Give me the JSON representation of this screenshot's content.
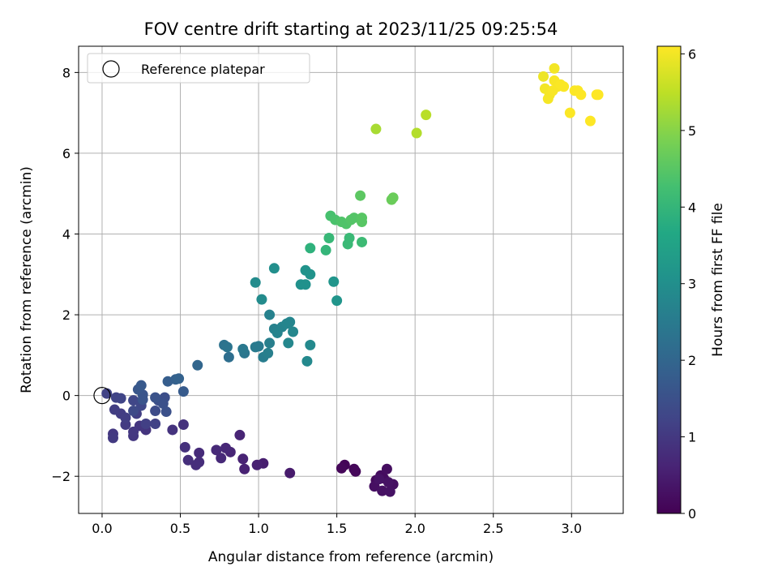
{
  "chart_data": {
    "type": "scatter",
    "title": "FOV centre drift starting at 2023/11/25 09:25:54",
    "xlabel": "Angular distance from reference (arcmin)",
    "ylabel": "Rotation from reference (arcmin)",
    "colorbar_label": "Hours from first FF file",
    "xlim": [
      -0.15,
      3.33
    ],
    "ylim": [
      -2.92,
      8.65
    ],
    "clim": [
      0,
      6.1
    ],
    "colormap": "viridis",
    "grid": true,
    "legend_position": "top-left",
    "x_ticks": [
      0.0,
      0.5,
      1.0,
      1.5,
      2.0,
      2.5,
      3.0
    ],
    "x_tick_labels": [
      "0.0",
      "0.5",
      "1.0",
      "1.5",
      "2.0",
      "2.5",
      "3.0"
    ],
    "y_ticks": [
      -2,
      0,
      2,
      4,
      6,
      8
    ],
    "y_tick_labels": [
      "−2",
      "0",
      "2",
      "4",
      "6",
      "8"
    ],
    "colorbar_ticks": [
      0,
      1,
      2,
      3,
      4,
      5,
      6
    ],
    "colorbar_tick_labels": [
      "0",
      "1",
      "2",
      "3",
      "4",
      "5",
      "6"
    ],
    "reference": {
      "name": "Reference platepar",
      "x": 0.0,
      "y": 0.0
    },
    "points": [
      {
        "x": 1.55,
        "y": -1.72,
        "t": 0.05
      },
      {
        "x": 1.53,
        "y": -1.8,
        "t": 0.1
      },
      {
        "x": 1.61,
        "y": -1.82,
        "t": 0.1
      },
      {
        "x": 1.62,
        "y": -1.88,
        "t": 0.12
      },
      {
        "x": 1.75,
        "y": -2.1,
        "t": 0.15
      },
      {
        "x": 1.78,
        "y": -1.98,
        "t": 0.2
      },
      {
        "x": 1.8,
        "y": -2.05,
        "t": 0.2
      },
      {
        "x": 1.82,
        "y": -1.82,
        "t": 0.22
      },
      {
        "x": 1.86,
        "y": -2.2,
        "t": 0.25
      },
      {
        "x": 1.74,
        "y": -2.25,
        "t": 0.25
      },
      {
        "x": 1.79,
        "y": -2.36,
        "t": 0.28
      },
      {
        "x": 1.84,
        "y": -2.38,
        "t": 0.3
      },
      {
        "x": 1.83,
        "y": -2.15,
        "t": 0.3
      },
      {
        "x": 1.77,
        "y": -2.07,
        "t": 0.32
      },
      {
        "x": 1.2,
        "y": -1.92,
        "t": 0.45
      },
      {
        "x": 1.03,
        "y": -1.68,
        "t": 0.5
      },
      {
        "x": 0.99,
        "y": -1.72,
        "t": 0.55
      },
      {
        "x": 0.91,
        "y": -1.82,
        "t": 0.58
      },
      {
        "x": 0.9,
        "y": -1.57,
        "t": 0.6
      },
      {
        "x": 0.88,
        "y": -0.98,
        "t": 0.62
      },
      {
        "x": 0.82,
        "y": -1.4,
        "t": 0.65
      },
      {
        "x": 0.79,
        "y": -1.3,
        "t": 0.68
      },
      {
        "x": 0.76,
        "y": -1.55,
        "t": 0.7
      },
      {
        "x": 0.73,
        "y": -1.35,
        "t": 0.72
      },
      {
        "x": 0.62,
        "y": -1.42,
        "t": 0.75
      },
      {
        "x": 0.62,
        "y": -1.65,
        "t": 0.78
      },
      {
        "x": 0.6,
        "y": -1.72,
        "t": 0.8
      },
      {
        "x": 0.55,
        "y": -1.6,
        "t": 0.82
      },
      {
        "x": 0.53,
        "y": -1.28,
        "t": 0.85
      },
      {
        "x": 0.52,
        "y": -0.72,
        "t": 0.88
      },
      {
        "x": 0.45,
        "y": -0.85,
        "t": 0.9
      },
      {
        "x": 0.28,
        "y": -0.85,
        "t": 0.92
      },
      {
        "x": 0.24,
        "y": -0.75,
        "t": 0.95
      },
      {
        "x": 0.2,
        "y": -1.0,
        "t": 0.98
      },
      {
        "x": 0.2,
        "y": -0.9,
        "t": 1.0
      },
      {
        "x": 0.07,
        "y": -0.95,
        "t": 1.0
      },
      {
        "x": 0.07,
        "y": -1.05,
        "t": 1.02
      },
      {
        "x": 0.15,
        "y": -0.72,
        "t": 1.05
      },
      {
        "x": 0.12,
        "y": -0.45,
        "t": 1.08
      },
      {
        "x": 0.08,
        "y": -0.35,
        "t": 1.1
      },
      {
        "x": 0.15,
        "y": -0.55,
        "t": 1.1
      },
      {
        "x": 0.22,
        "y": -0.45,
        "t": 1.12
      },
      {
        "x": 0.28,
        "y": -0.7,
        "t": 1.15
      },
      {
        "x": 0.34,
        "y": -0.7,
        "t": 1.18
      },
      {
        "x": 0.03,
        "y": 0.05,
        "t": 1.2
      },
      {
        "x": 0.09,
        "y": -0.05,
        "t": 1.22
      },
      {
        "x": 0.12,
        "y": -0.07,
        "t": 1.25
      },
      {
        "x": 0.2,
        "y": -0.12,
        "t": 1.28
      },
      {
        "x": 0.25,
        "y": -0.25,
        "t": 1.3
      },
      {
        "x": 0.2,
        "y": -0.38,
        "t": 1.35
      },
      {
        "x": 0.34,
        "y": -0.38,
        "t": 1.4
      },
      {
        "x": 0.36,
        "y": -0.12,
        "t": 1.45
      },
      {
        "x": 0.4,
        "y": -0.05,
        "t": 1.45
      },
      {
        "x": 0.39,
        "y": -0.2,
        "t": 1.5
      },
      {
        "x": 0.41,
        "y": -0.4,
        "t": 1.5
      },
      {
        "x": 0.34,
        "y": -0.05,
        "t": 1.55
      },
      {
        "x": 0.26,
        "y": 0.02,
        "t": 1.6
      },
      {
        "x": 0.26,
        "y": -0.1,
        "t": 1.6
      },
      {
        "x": 0.23,
        "y": 0.15,
        "t": 1.65
      },
      {
        "x": 0.25,
        "y": 0.25,
        "t": 1.7
      },
      {
        "x": 0.52,
        "y": 0.1,
        "t": 1.75
      },
      {
        "x": 0.42,
        "y": 0.35,
        "t": 1.8
      },
      {
        "x": 0.47,
        "y": 0.4,
        "t": 1.85
      },
      {
        "x": 0.49,
        "y": 0.42,
        "t": 1.9
      },
      {
        "x": 0.61,
        "y": 0.75,
        "t": 2.0
      },
      {
        "x": 0.81,
        "y": 0.95,
        "t": 2.2
      },
      {
        "x": 0.78,
        "y": 1.25,
        "t": 2.3
      },
      {
        "x": 0.8,
        "y": 1.2,
        "t": 2.35
      },
      {
        "x": 0.91,
        "y": 1.05,
        "t": 2.4
      },
      {
        "x": 0.9,
        "y": 1.15,
        "t": 2.45
      },
      {
        "x": 1.0,
        "y": 1.22,
        "t": 2.5
      },
      {
        "x": 0.98,
        "y": 1.2,
        "t": 2.5
      },
      {
        "x": 1.03,
        "y": 0.95,
        "t": 2.55
      },
      {
        "x": 1.06,
        "y": 1.05,
        "t": 2.6
      },
      {
        "x": 1.07,
        "y": 1.3,
        "t": 2.6
      },
      {
        "x": 1.07,
        "y": 2.0,
        "t": 2.65
      },
      {
        "x": 1.1,
        "y": 1.65,
        "t": 2.65
      },
      {
        "x": 1.12,
        "y": 1.55,
        "t": 2.7
      },
      {
        "x": 1.15,
        "y": 1.7,
        "t": 2.7
      },
      {
        "x": 1.18,
        "y": 1.78,
        "t": 2.75
      },
      {
        "x": 1.2,
        "y": 1.82,
        "t": 2.75
      },
      {
        "x": 1.22,
        "y": 1.58,
        "t": 2.8
      },
      {
        "x": 1.19,
        "y": 1.3,
        "t": 2.8
      },
      {
        "x": 1.31,
        "y": 0.85,
        "t": 2.85
      },
      {
        "x": 1.33,
        "y": 1.25,
        "t": 2.85
      },
      {
        "x": 0.98,
        "y": 2.8,
        "t": 2.9
      },
      {
        "x": 1.02,
        "y": 2.38,
        "t": 2.9
      },
      {
        "x": 1.1,
        "y": 3.15,
        "t": 3.0
      },
      {
        "x": 1.27,
        "y": 2.75,
        "t": 3.05
      },
      {
        "x": 1.3,
        "y": 2.75,
        "t": 3.05
      },
      {
        "x": 1.3,
        "y": 3.1,
        "t": 3.1
      },
      {
        "x": 1.33,
        "y": 3.0,
        "t": 3.1
      },
      {
        "x": 1.48,
        "y": 2.82,
        "t": 3.15
      },
      {
        "x": 1.5,
        "y": 2.35,
        "t": 3.15
      },
      {
        "x": 1.33,
        "y": 3.65,
        "t": 3.9
      },
      {
        "x": 1.43,
        "y": 3.6,
        "t": 4.0
      },
      {
        "x": 1.45,
        "y": 3.9,
        "t": 4.05
      },
      {
        "x": 1.57,
        "y": 3.75,
        "t": 4.1
      },
      {
        "x": 1.58,
        "y": 3.9,
        "t": 4.1
      },
      {
        "x": 1.66,
        "y": 3.8,
        "t": 4.15
      },
      {
        "x": 1.46,
        "y": 4.45,
        "t": 4.3
      },
      {
        "x": 1.49,
        "y": 4.35,
        "t": 4.35
      },
      {
        "x": 1.53,
        "y": 4.3,
        "t": 4.4
      },
      {
        "x": 1.56,
        "y": 4.25,
        "t": 4.4
      },
      {
        "x": 1.59,
        "y": 4.35,
        "t": 4.45
      },
      {
        "x": 1.61,
        "y": 4.4,
        "t": 4.45
      },
      {
        "x": 1.66,
        "y": 4.4,
        "t": 4.5
      },
      {
        "x": 1.66,
        "y": 4.3,
        "t": 4.5
      },
      {
        "x": 1.65,
        "y": 4.95,
        "t": 4.55
      },
      {
        "x": 1.85,
        "y": 4.85,
        "t": 4.7
      },
      {
        "x": 1.86,
        "y": 4.9,
        "t": 4.7
      },
      {
        "x": 1.75,
        "y": 6.6,
        "t": 5.3
      },
      {
        "x": 2.01,
        "y": 6.5,
        "t": 5.4
      },
      {
        "x": 2.07,
        "y": 6.95,
        "t": 5.45
      },
      {
        "x": 2.82,
        "y": 7.9,
        "t": 5.95
      },
      {
        "x": 2.89,
        "y": 8.1,
        "t": 6.0
      },
      {
        "x": 2.83,
        "y": 7.6,
        "t": 6.0
      },
      {
        "x": 2.85,
        "y": 7.35,
        "t": 6.02
      },
      {
        "x": 2.86,
        "y": 7.45,
        "t": 6.02
      },
      {
        "x": 2.88,
        "y": 7.55,
        "t": 6.05
      },
      {
        "x": 2.89,
        "y": 7.8,
        "t": 6.05
      },
      {
        "x": 2.91,
        "y": 7.65,
        "t": 6.05
      },
      {
        "x": 2.93,
        "y": 7.7,
        "t": 6.07
      },
      {
        "x": 2.95,
        "y": 7.65,
        "t": 6.07
      },
      {
        "x": 2.99,
        "y": 7.0,
        "t": 6.08
      },
      {
        "x": 3.02,
        "y": 7.55,
        "t": 6.08
      },
      {
        "x": 3.04,
        "y": 7.55,
        "t": 6.08
      },
      {
        "x": 3.06,
        "y": 7.45,
        "t": 6.1
      },
      {
        "x": 3.12,
        "y": 6.8,
        "t": 6.1
      },
      {
        "x": 3.16,
        "y": 7.45,
        "t": 6.1
      },
      {
        "x": 3.17,
        "y": 7.45,
        "t": 6.1
      }
    ]
  }
}
